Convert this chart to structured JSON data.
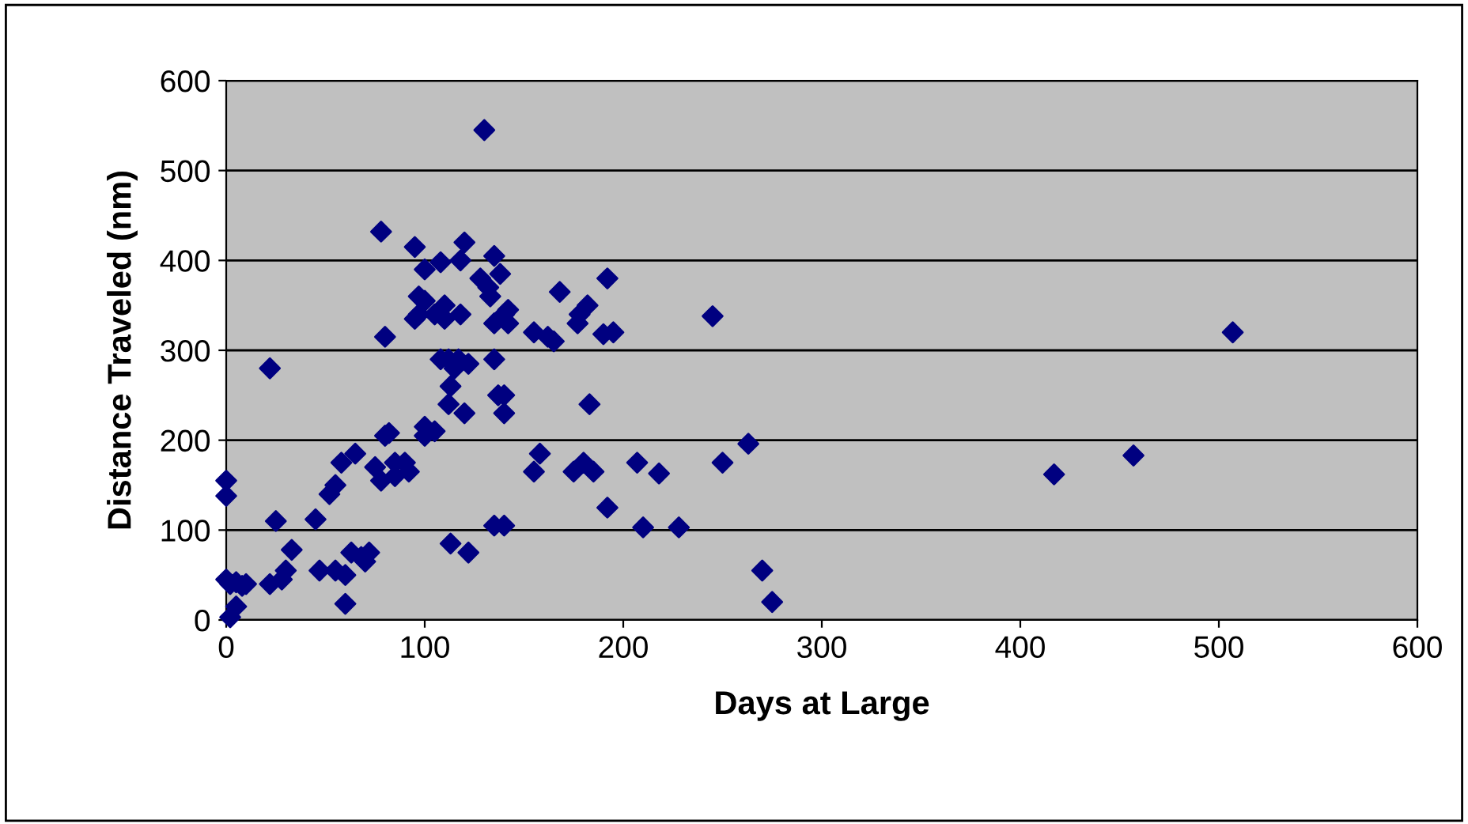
{
  "chart_data": {
    "type": "scatter",
    "xlabel": "Days at Large",
    "ylabel": "Distance Traveled (nm)",
    "xlim": [
      0,
      600
    ],
    "ylim": [
      0,
      600
    ],
    "xticks": [
      0,
      100,
      200,
      300,
      400,
      500,
      600
    ],
    "yticks": [
      0,
      100,
      200,
      300,
      400,
      500,
      600
    ],
    "grid": "y",
    "marker": "diamond",
    "series": [
      {
        "color": "#000080",
        "x": [
          0,
          0,
          0,
          2,
          5,
          8,
          2,
          5,
          10,
          22,
          25,
          22,
          28,
          30,
          33,
          45,
          47,
          55,
          52,
          55,
          58,
          60,
          60,
          63,
          65,
          68,
          70,
          72,
          75,
          78,
          78,
          80,
          80,
          82,
          85,
          85,
          90,
          92,
          95,
          95,
          97,
          97,
          100,
          100,
          100,
          100,
          105,
          105,
          108,
          108,
          110,
          110,
          112,
          112,
          113,
          113,
          115,
          117,
          118,
          118,
          120,
          120,
          122,
          122,
          128,
          130,
          132,
          133,
          135,
          135,
          135,
          135,
          137,
          138,
          140,
          140,
          140,
          140,
          142,
          142,
          155,
          155,
          158,
          162,
          165,
          168,
          175,
          177,
          178,
          180,
          182,
          183,
          185,
          190,
          192,
          192,
          195,
          207,
          210,
          218,
          228,
          245,
          250,
          263,
          270,
          275,
          417,
          457,
          507
        ],
        "values": [
          155,
          138,
          45,
          40,
          42,
          38,
          3,
          15,
          40,
          280,
          110,
          40,
          45,
          55,
          78,
          112,
          55,
          55,
          140,
          150,
          175,
          50,
          18,
          75,
          185,
          70,
          65,
          75,
          170,
          432,
          155,
          315,
          205,
          208,
          160,
          175,
          175,
          165,
          415,
          335,
          360,
          340,
          355,
          390,
          215,
          205,
          340,
          210,
          398,
          290,
          350,
          335,
          240,
          290,
          260,
          85,
          280,
          290,
          340,
          400,
          420,
          230,
          285,
          75,
          380,
          545,
          370,
          360,
          405,
          330,
          290,
          105,
          250,
          385,
          340,
          250,
          230,
          105,
          330,
          345,
          320,
          165,
          185,
          315,
          310,
          365,
          165,
          330,
          340,
          175,
          350,
          240,
          165,
          318,
          380,
          125,
          320,
          175,
          103,
          163,
          103,
          338,
          175,
          196,
          55,
          20,
          162,
          183,
          320
        ]
      }
    ]
  }
}
